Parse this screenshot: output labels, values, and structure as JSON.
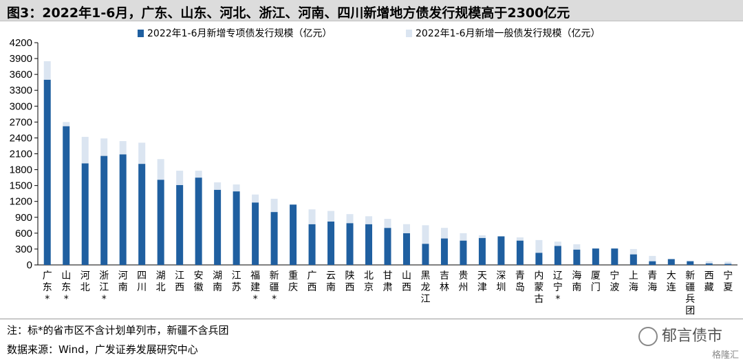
{
  "title": "图3：2022年1-6月，广东、山东、河北、浙江、河南、四川新增地方债发行规模高于2300亿元",
  "notes": {
    "note": "注：标*的省市区不含计划单列市，新疆不含兵团",
    "source": "数据来源：Wind，广发证券发展研究中心"
  },
  "watermark": {
    "text": "郁言债市",
    "sub": "格隆汇"
  },
  "colors": {
    "special": "#1f5fa0",
    "general": "#dbe5f1",
    "axis": "#000000"
  },
  "chart_data": {
    "type": "bar",
    "stacked": true,
    "categories": [
      "广东*",
      "山东*",
      "河北",
      "浙江*",
      "河南",
      "四川",
      "湖北",
      "江西",
      "安徽",
      "湖南",
      "江苏",
      "福建*",
      "新疆*",
      "重庆",
      "广西",
      "云南",
      "陕西",
      "北京",
      "甘肃",
      "山西",
      "黑龙江",
      "吉林",
      "贵州",
      "天津",
      "深圳",
      "青岛",
      "内蒙古",
      "辽宁*",
      "海南",
      "厦门",
      "宁波",
      "上海",
      "青海",
      "大连",
      "新疆兵团",
      "西藏",
      "宁夏"
    ],
    "series": [
      {
        "name": "2022年1-6月新增专项债发行规模（亿元）",
        "values": [
          3500,
          2620,
          1920,
          2060,
          2090,
          1910,
          1610,
          1510,
          1650,
          1420,
          1390,
          1180,
          1000,
          1140,
          770,
          820,
          790,
          770,
          700,
          600,
          400,
          500,
          460,
          510,
          540,
          460,
          230,
          360,
          290,
          310,
          310,
          200,
          70,
          110,
          70,
          30,
          20
        ]
      },
      {
        "name": "2022年1-6月新增一般债发行规模（亿元）",
        "values": [
          350,
          80,
          500,
          330,
          250,
          400,
          390,
          270,
          130,
          140,
          130,
          150,
          250,
          0,
          280,
          200,
          170,
          150,
          170,
          170,
          350,
          200,
          140,
          50,
          0,
          60,
          240,
          80,
          100,
          0,
          0,
          100,
          100,
          0,
          10,
          40,
          40
        ]
      }
    ],
    "yticks": [
      0,
      300,
      600,
      900,
      1200,
      1500,
      1800,
      2100,
      2400,
      2700,
      3000,
      3300,
      3600,
      3900,
      4200
    ],
    "ylim": [
      0,
      4200
    ],
    "legend_position": "top"
  }
}
